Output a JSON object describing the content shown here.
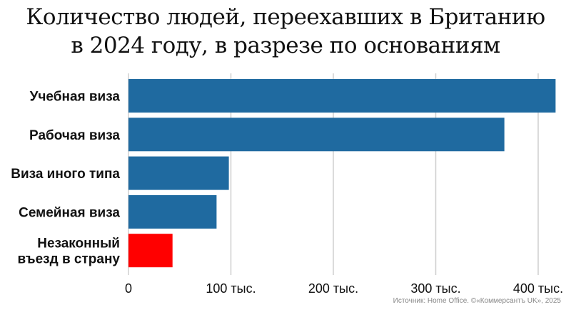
{
  "chart_data": {
    "type": "bar",
    "orientation": "horizontal",
    "title": "Количество людей, переехавших в Британию в 2024 году, в разрезе по основаниям",
    "title_lines": [
      "Количество людей, переехавших в Британию",
      "в 2024 году, в разрезе по основаниям"
    ],
    "categories": [
      "Учебная виза",
      "Рабочая виза",
      "Виза иного типа",
      "Семейная виза",
      "Незаконный въезд в страну"
    ],
    "category_lines": [
      [
        "Учебная виза"
      ],
      [
        "Рабочая виза"
      ],
      [
        "Виза иного типа"
      ],
      [
        "Семейная виза"
      ],
      [
        "Незаконный",
        "въезд в страну"
      ]
    ],
    "values": [
      417,
      367,
      98,
      86,
      43
    ],
    "unit": "thousand",
    "colors": [
      "#1f6aa0",
      "#1f6aa0",
      "#1f6aa0",
      "#1f6aa0",
      "#ff0000"
    ],
    "xlim": [
      0,
      420
    ],
    "xticks": [
      0,
      100,
      200,
      300,
      400
    ],
    "xtick_labels": [
      "0",
      "100 тыс.",
      "200 тыс.",
      "300 тыс.",
      "400 тыс."
    ],
    "grid": "vertical",
    "legend": "none",
    "source": "Источник: Home Office. ©«Коммерсантъ UK», 2025"
  }
}
